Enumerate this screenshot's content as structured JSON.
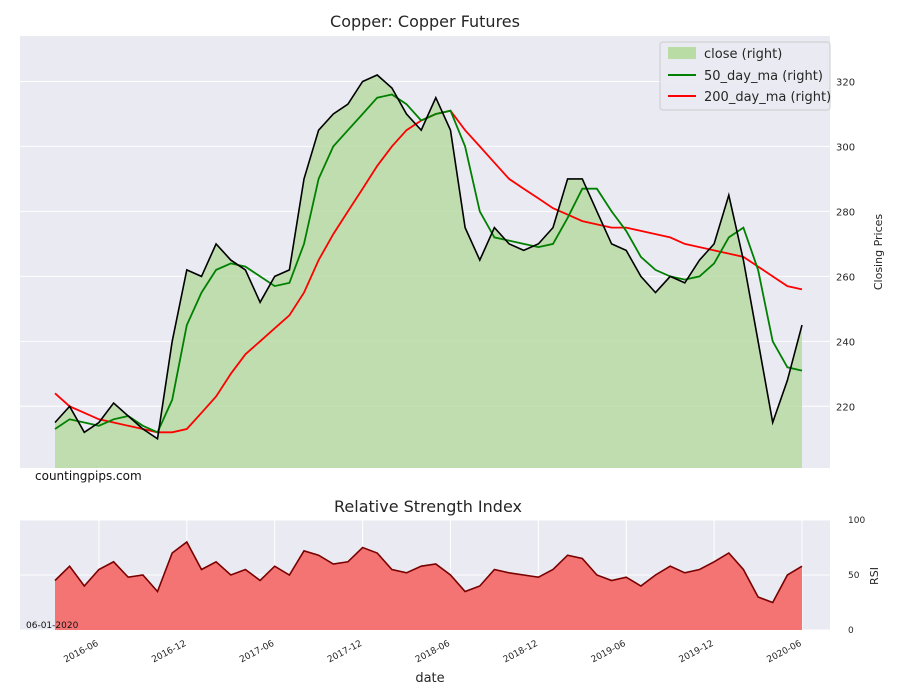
{
  "watermark": "countingpips.com",
  "date_stamp": "06-01-2020",
  "colors": {
    "background": "#eaeaf2",
    "grid": "#ffffff",
    "close_fill": "#b9dba4",
    "close_line": "#000000",
    "ma50": "#008000",
    "ma200": "#ff0000",
    "rsi_fill": "#f47373",
    "rsi_line": "#7a0000"
  },
  "chart_data": [
    {
      "type": "area",
      "title": "Copper: Copper Futures",
      "ylabel": "Closing Prices",
      "xlabel": "",
      "ylim": [
        201,
        334
      ],
      "yticks": [
        220,
        240,
        260,
        280,
        300,
        320
      ],
      "grid": true,
      "legend_placement": "top-right",
      "xticklabels": [
        "2016-06",
        "2016-12",
        "2017-06",
        "2017-12",
        "2018-06",
        "2018-12",
        "2019-06",
        "2019-12",
        "2020-06"
      ],
      "x": [
        "2016-03",
        "2016-04",
        "2016-05",
        "2016-06",
        "2016-07",
        "2016-08",
        "2016-09",
        "2016-10",
        "2016-11",
        "2016-12",
        "2017-01",
        "2017-02",
        "2017-03",
        "2017-04",
        "2017-05",
        "2017-06",
        "2017-07",
        "2017-08",
        "2017-09",
        "2017-10",
        "2017-11",
        "2017-12",
        "2018-01",
        "2018-02",
        "2018-03",
        "2018-04",
        "2018-05",
        "2018-06",
        "2018-07",
        "2018-08",
        "2018-09",
        "2018-10",
        "2018-11",
        "2018-12",
        "2019-01",
        "2019-02",
        "2019-03",
        "2019-04",
        "2019-05",
        "2019-06",
        "2019-07",
        "2019-08",
        "2019-09",
        "2019-10",
        "2019-11",
        "2019-12",
        "2020-01",
        "2020-02",
        "2020-03",
        "2020-04",
        "2020-05",
        "2020-06"
      ],
      "series": [
        {
          "name": "close (right)",
          "values": [
            215,
            220,
            212,
            215,
            221,
            217,
            213,
            210,
            240,
            262,
            260,
            270,
            265,
            262,
            252,
            260,
            262,
            290,
            305,
            310,
            313,
            320,
            322,
            318,
            310,
            305,
            315,
            305,
            275,
            265,
            275,
            270,
            268,
            270,
            275,
            290,
            290,
            280,
            270,
            268,
            260,
            255,
            260,
            258,
            265,
            270,
            285,
            265,
            240,
            215,
            228,
            245
          ]
        },
        {
          "name": "50_day_ma (right)",
          "values": [
            213,
            216,
            215,
            214,
            216,
            217,
            214,
            212,
            222,
            245,
            255,
            262,
            264,
            263,
            260,
            257,
            258,
            270,
            290,
            300,
            305,
            310,
            315,
            316,
            313,
            308,
            310,
            311,
            300,
            280,
            272,
            271,
            270,
            269,
            270,
            278,
            287,
            287,
            280,
            274,
            266,
            262,
            260,
            259,
            260,
            264,
            272,
            275,
            262,
            240,
            232,
            231
          ]
        },
        {
          "name": "200_day_ma (right)",
          "values": [
            224,
            220,
            218,
            216,
            215,
            214,
            213,
            212,
            212,
            213,
            218,
            223,
            230,
            236,
            240,
            244,
            248,
            255,
            265,
            273,
            280,
            287,
            294,
            300,
            305,
            308,
            310,
            311,
            305,
            300,
            295,
            290,
            287,
            284,
            281,
            279,
            277,
            276,
            275,
            275,
            274,
            273,
            272,
            270,
            269,
            268,
            267,
            266,
            263,
            260,
            257,
            256
          ]
        }
      ]
    },
    {
      "type": "area",
      "title": "Relative Strength Index",
      "ylabel": "RSI",
      "xlabel": "date",
      "ylim": [
        0,
        100
      ],
      "yticks": [
        0,
        50,
        100
      ],
      "grid": true,
      "xticklabels": [
        "2016-06",
        "2016-12",
        "2017-06",
        "2017-12",
        "2018-06",
        "2018-12",
        "2019-06",
        "2019-12",
        "2020-06"
      ],
      "series": [
        {
          "name": "RSI",
          "values": [
            45,
            58,
            40,
            55,
            62,
            48,
            50,
            35,
            70,
            80,
            55,
            62,
            50,
            55,
            45,
            58,
            50,
            72,
            68,
            60,
            62,
            75,
            70,
            55,
            52,
            58,
            60,
            50,
            35,
            40,
            55,
            52,
            50,
            48,
            55,
            68,
            65,
            50,
            45,
            48,
            40,
            50,
            58,
            52,
            55,
            62,
            70,
            55,
            30,
            25,
            50,
            58
          ]
        }
      ]
    }
  ]
}
